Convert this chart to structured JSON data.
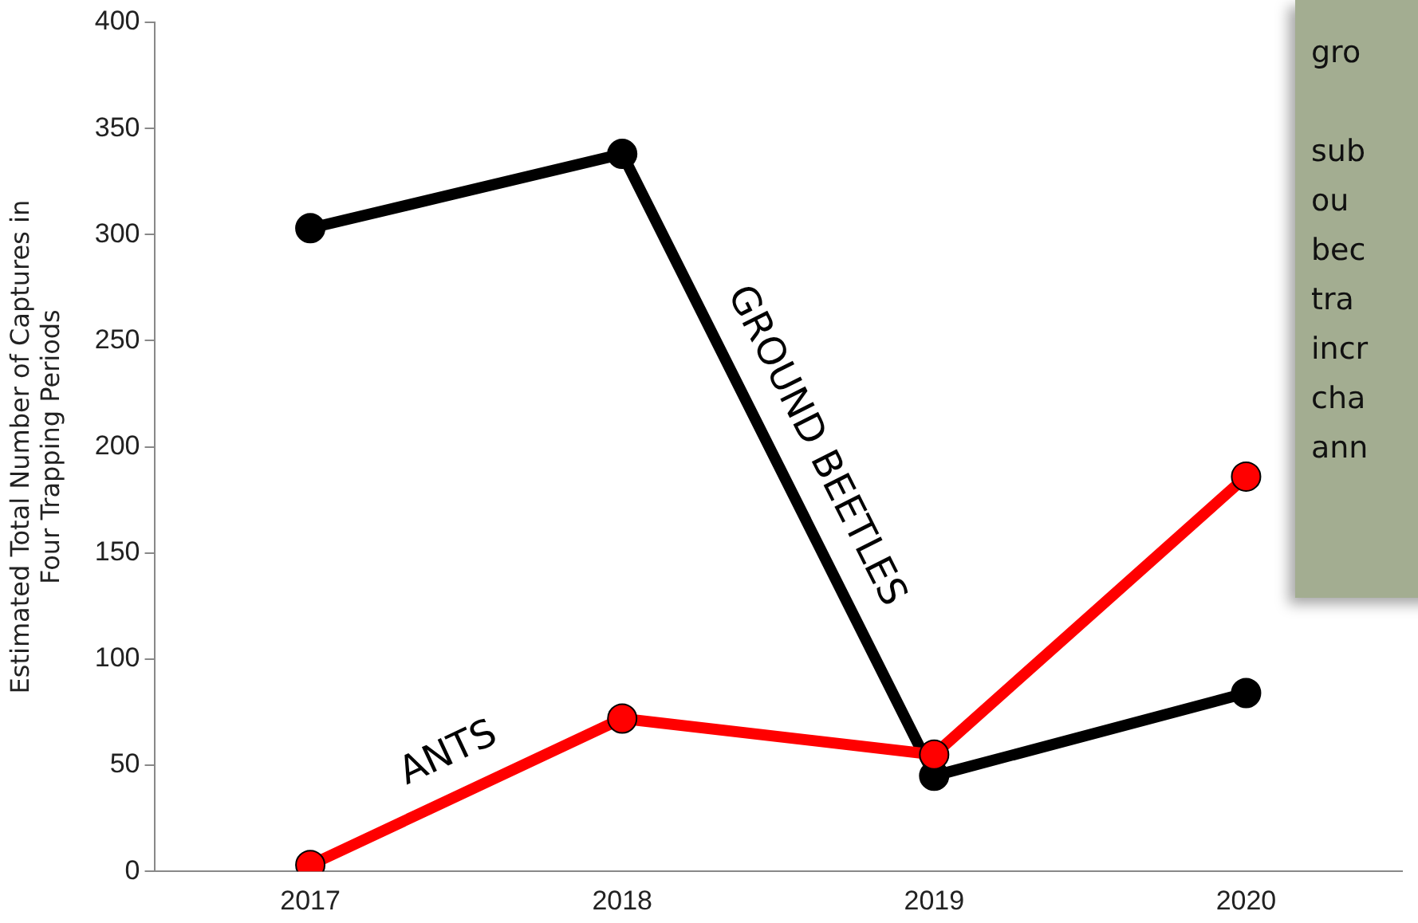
{
  "chart_data": {
    "type": "line",
    "ylabel": "Estimated Total Number of Captures in Four Trapping Periods",
    "categories": [
      "2017",
      "2018",
      "2019",
      "2020"
    ],
    "series": [
      {
        "name": "GROUND BEETLES",
        "color": "#000000",
        "values": [
          303,
          338,
          45,
          84
        ]
      },
      {
        "name": "ANTS",
        "color": "#ff0000",
        "values": [
          3,
          72,
          55,
          186
        ]
      }
    ],
    "ylim": [
      0,
      400
    ],
    "yticks": [
      0,
      50,
      100,
      150,
      200,
      250,
      300,
      350,
      400
    ],
    "grid": false,
    "legend": false,
    "marker": "circle",
    "line_style": "solid",
    "annotations": [
      "gro\n\nsub\nou\nbec\ntra\nincr\ncha\nann"
    ]
  }
}
